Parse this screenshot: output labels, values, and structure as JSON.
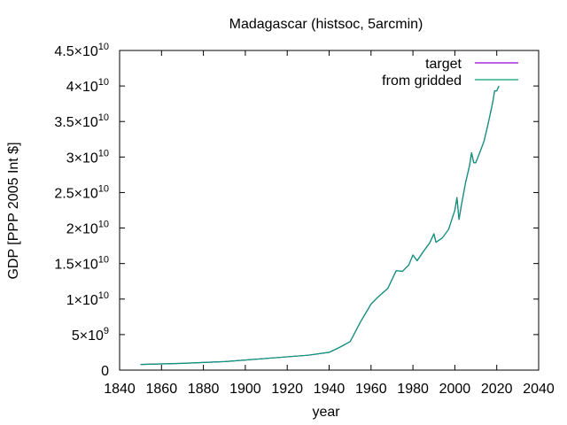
{
  "chart_data": {
    "type": "line",
    "title": "Madagascar (histsoc, 5arcmin)",
    "xlabel": "year",
    "ylabel": "GDP [PPP 2005 Int $]",
    "xlim": [
      1840,
      2040
    ],
    "ylim": [
      0,
      45000000000
    ],
    "x_ticks": [
      "1840",
      "1860",
      "1880",
      "1900",
      "1920",
      "1940",
      "1960",
      "1980",
      "2000",
      "2020",
      "2040"
    ],
    "y_ticks": [
      {
        "value": 0,
        "mantissa": "0",
        "exp": ""
      },
      {
        "value": 5000000000,
        "mantissa": "5×10",
        "exp": "9"
      },
      {
        "value": 10000000000,
        "mantissa": "1×10",
        "exp": "10"
      },
      {
        "value": 15000000000,
        "mantissa": "1.5×10",
        "exp": "10"
      },
      {
        "value": 20000000000,
        "mantissa": "2×10",
        "exp": "10"
      },
      {
        "value": 25000000000,
        "mantissa": "2.5×10",
        "exp": "10"
      },
      {
        "value": 30000000000,
        "mantissa": "3×10",
        "exp": "10"
      },
      {
        "value": 35000000000,
        "mantissa": "3.5×10",
        "exp": "10"
      },
      {
        "value": 40000000000,
        "mantissa": "4×10",
        "exp": "10"
      },
      {
        "value": 45000000000,
        "mantissa": "4.5×10",
        "exp": "10"
      }
    ],
    "grid": false,
    "legend_position": "top-right",
    "series": [
      {
        "name": "target",
        "color": "#9400d3",
        "x": [
          1850,
          1870,
          1890,
          1910,
          1930,
          1940,
          1945,
          1950,
          1955,
          1960,
          1963,
          1968,
          1972,
          1975,
          1978,
          1980,
          1982,
          1985,
          1988,
          1990,
          1991,
          1994,
          1997,
          2000,
          2001,
          2002,
          2003,
          2005,
          2007,
          2008,
          2009,
          2010,
          2012,
          2014,
          2016,
          2018,
          2019,
          2020,
          2021
        ],
        "y": [
          800000000,
          950000000,
          1200000000,
          1650000000,
          2100000000,
          2500000000,
          3200000000,
          4000000000,
          6800000000,
          9300000000,
          10200000000,
          11500000000,
          14000000000,
          13900000000,
          14800000000,
          16200000000,
          15400000000,
          16700000000,
          17900000000,
          19200000000,
          18000000000,
          18600000000,
          19800000000,
          22500000000,
          24300000000,
          21200000000,
          23000000000,
          26200000000,
          28800000000,
          30600000000,
          29200000000,
          29200000000,
          30700000000,
          32300000000,
          34800000000,
          37600000000,
          39300000000,
          39300000000,
          40000000000
        ]
      },
      {
        "name": "from gridded",
        "color": "#009e73",
        "x": [
          1850,
          1870,
          1890,
          1910,
          1930,
          1940,
          1945,
          1950,
          1955,
          1960,
          1963,
          1968,
          1972,
          1975,
          1978,
          1980,
          1982,
          1985,
          1988,
          1990,
          1991,
          1994,
          1997,
          2000,
          2001,
          2002,
          2003,
          2005,
          2007,
          2008,
          2009,
          2010,
          2012,
          2014,
          2016,
          2018,
          2019,
          2020,
          2021
        ],
        "y": [
          800000000,
          950000000,
          1200000000,
          1650000000,
          2100000000,
          2500000000,
          3200000000,
          4000000000,
          6800000000,
          9300000000,
          10200000000,
          11500000000,
          14000000000,
          13900000000,
          14800000000,
          16200000000,
          15400000000,
          16700000000,
          17900000000,
          19200000000,
          18000000000,
          18600000000,
          19800000000,
          22500000000,
          24300000000,
          21200000000,
          23000000000,
          26200000000,
          28800000000,
          30600000000,
          29200000000,
          29200000000,
          30700000000,
          32300000000,
          34800000000,
          37600000000,
          39300000000,
          39300000000,
          40000000000
        ]
      }
    ]
  }
}
